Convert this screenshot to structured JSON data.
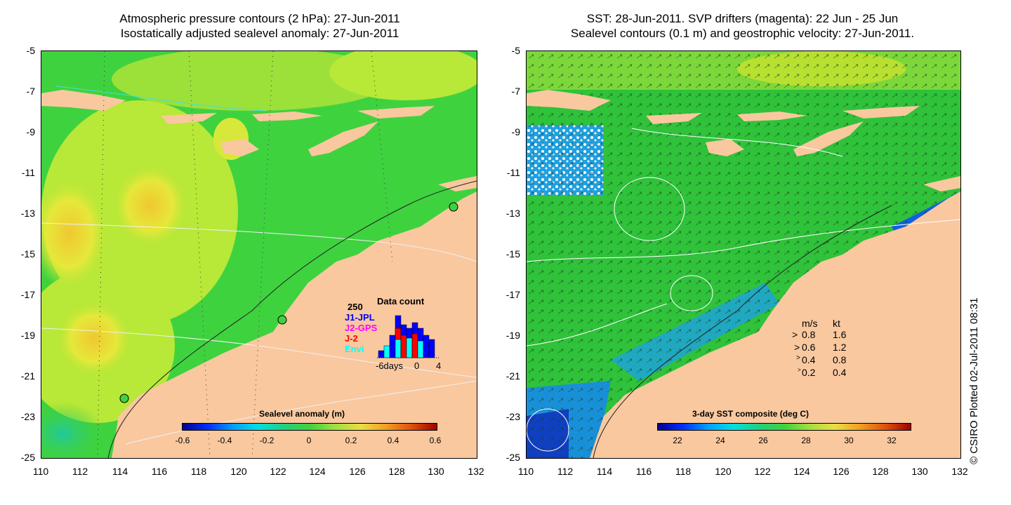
{
  "left_panel": {
    "title_line1": "Atmospheric pressure contours (2 hPa): 27-Jun-2011",
    "title_line2": "Isostatically adjusted sealevel anomaly: 27-Jun-2011",
    "colorbar_title": "Sealevel anomaly (m)",
    "colorbar_ticks": [
      "-0.6",
      "-0.4",
      "-0.2",
      "0",
      "0.2",
      "0.4",
      "0.6"
    ],
    "inset": {
      "title": "Data count",
      "ymax_label": "250",
      "legend": [
        {
          "label": "J1-JPL",
          "color": "#0000ff"
        },
        {
          "label": "J2-GPS",
          "color": "#ff00ff"
        },
        {
          "label": "J-2",
          "color": "#ff0000"
        },
        {
          "label": "Envi",
          "color": "#00ffff"
        }
      ],
      "x_labels": [
        "-6days",
        "0",
        "4"
      ]
    }
  },
  "right_panel": {
    "title_line1": "SST: 28-Jun-2011. SVP drifters (magenta): 22 Jun - 25 Jun",
    "title_line2": "Sealevel contours (0.1 m) and geostrophic velocity: 27-Jun-2011.",
    "colorbar_title": "3-day SST composite (deg C)",
    "colorbar_ticks": [
      "22",
      "24",
      "26",
      "28",
      "30",
      "32"
    ],
    "velocity_legend": {
      "header_ms": "m/s",
      "header_kt": "kt",
      "rows": [
        {
          "ms": "0.8",
          "kt": "1.6"
        },
        {
          "ms": "0.6",
          "kt": "1.2"
        },
        {
          "ms": "0.4",
          "kt": "0.8"
        },
        {
          "ms": "0.2",
          "kt": "0.4"
        }
      ]
    }
  },
  "y_ticks": [
    "-5",
    "-7",
    "-9",
    "-11",
    "-13",
    "-15",
    "-17",
    "-19",
    "-21",
    "-23",
    "-25"
  ],
  "x_ticks": [
    "110",
    "112",
    "114",
    "116",
    "118",
    "120",
    "122",
    "124",
    "126",
    "128",
    "130",
    "132"
  ],
  "credit": "© CSIRO Plotted 02-Jul-2011 08:31",
  "colors": {
    "land": "#f9c89f",
    "ocean_anomaly": "#3fd23f",
    "ocean_sst": "#2fc23a",
    "positive_anomaly": "#e8e03a"
  }
}
